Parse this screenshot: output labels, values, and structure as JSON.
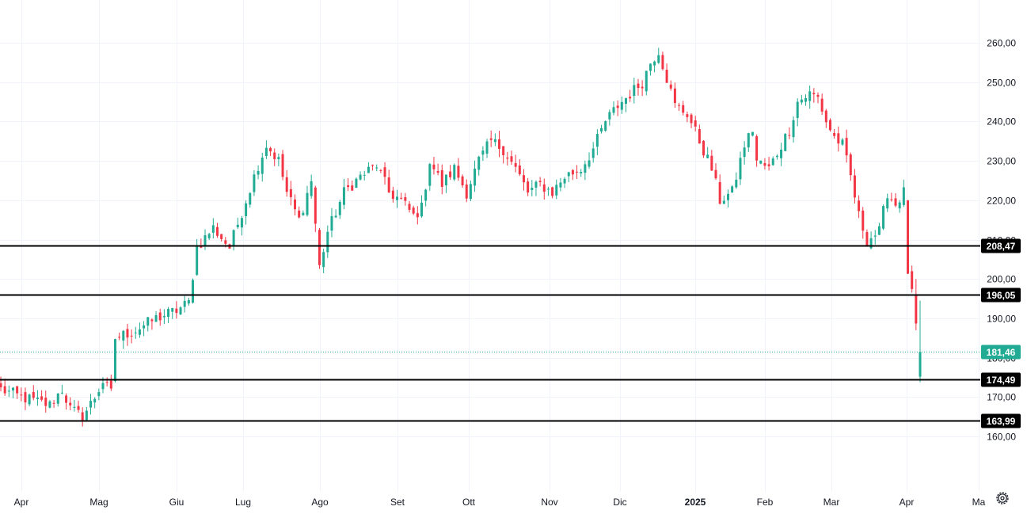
{
  "chart_data": {
    "type": "candlestick",
    "title": "",
    "xlabel": "",
    "ylabel": "",
    "ylim": [
      152,
      266
    ],
    "y_ticks": [
      {
        "value": 160,
        "label": "160,00"
      },
      {
        "value": 170,
        "label": "170,00"
      },
      {
        "value": 180,
        "label": "180,00"
      },
      {
        "value": 190,
        "label": "190,00"
      },
      {
        "value": 200,
        "label": "200,00"
      },
      {
        "value": 210,
        "label": "210,00"
      },
      {
        "value": 220,
        "label": "220,00"
      },
      {
        "value": 230,
        "label": "230,00"
      },
      {
        "value": 240,
        "label": "240,00"
      },
      {
        "value": 250,
        "label": "250,00"
      },
      {
        "value": 260,
        "label": "260,00"
      }
    ],
    "x_ticks": [
      {
        "label": "Apr",
        "bold": false
      },
      {
        "label": "Mag",
        "bold": false
      },
      {
        "label": "Giu",
        "bold": false
      },
      {
        "label": "Lug",
        "bold": false
      },
      {
        "label": "Ago",
        "bold": false
      },
      {
        "label": "Set",
        "bold": false
      },
      {
        "label": "Ott",
        "bold": false
      },
      {
        "label": "Nov",
        "bold": false
      },
      {
        "label": "Dic",
        "bold": false
      },
      {
        "label": "2025",
        "bold": true
      },
      {
        "label": "Feb",
        "bold": false
      },
      {
        "label": "Mar",
        "bold": false
      },
      {
        "label": "Apr",
        "bold": false
      },
      {
        "label": "Ma",
        "bold": false
      }
    ],
    "price_anchors": [
      [
        0,
        172
      ],
      [
        5,
        170
      ],
      [
        12,
        168
      ],
      [
        15,
        172
      ],
      [
        17,
        167
      ],
      [
        20,
        165
      ],
      [
        23,
        170
      ],
      [
        25,
        174
      ],
      [
        27,
        171
      ],
      [
        28,
        185
      ],
      [
        33,
        187
      ],
      [
        38,
        190
      ],
      [
        43,
        192
      ],
      [
        46,
        194
      ],
      [
        48,
        208
      ],
      [
        52,
        213
      ],
      [
        56,
        208
      ],
      [
        60,
        220
      ],
      [
        63,
        229
      ],
      [
        65,
        234
      ],
      [
        68,
        230
      ],
      [
        70,
        222
      ],
      [
        73,
        215
      ],
      [
        76,
        225
      ],
      [
        78,
        203
      ],
      [
        80,
        212
      ],
      [
        84,
        222
      ],
      [
        88,
        226
      ],
      [
        92,
        229
      ],
      [
        95,
        222
      ],
      [
        98,
        220
      ],
      [
        101,
        216
      ],
      [
        103,
        218
      ],
      [
        105,
        230
      ],
      [
        108,
        224
      ],
      [
        111,
        228
      ],
      [
        114,
        222
      ],
      [
        117,
        230
      ],
      [
        120,
        235
      ],
      [
        123,
        233
      ],
      [
        126,
        228
      ],
      [
        129,
        222
      ],
      [
        132,
        224
      ],
      [
        135,
        222
      ],
      [
        138,
        226
      ],
      [
        142,
        228
      ],
      [
        145,
        233
      ],
      [
        148,
        240
      ],
      [
        151,
        244
      ],
      [
        154,
        247
      ],
      [
        157,
        250
      ],
      [
        159,
        255
      ],
      [
        161,
        258
      ],
      [
        163,
        251
      ],
      [
        165,
        244
      ],
      [
        168,
        242
      ],
      [
        171,
        235
      ],
      [
        174,
        228
      ],
      [
        176,
        220
      ],
      [
        179,
        222
      ],
      [
        182,
        234
      ],
      [
        184,
        238
      ],
      [
        185,
        230
      ],
      [
        188,
        228
      ],
      [
        191,
        234
      ],
      [
        193,
        238
      ],
      [
        195,
        245
      ],
      [
        198,
        247
      ],
      [
        200,
        246
      ],
      [
        202,
        240
      ],
      [
        204,
        236
      ],
      [
        206,
        234
      ],
      [
        208,
        226
      ],
      [
        210,
        216
      ],
      [
        212,
        210
      ],
      [
        215,
        212
      ],
      [
        217,
        222
      ],
      [
        219,
        219
      ],
      [
        221,
        222
      ],
      [
        222,
        202
      ],
      [
        223,
        196
      ],
      [
        224,
        188
      ],
      [
        225,
        181.46
      ]
    ],
    "last_price": {
      "value": 181.46,
      "label": "181,46",
      "color": "#22ab94"
    },
    "horizontal_levels": [
      {
        "value": 208.47,
        "label": "208,47"
      },
      {
        "value": 196.05,
        "label": "196,05"
      },
      {
        "value": 174.49,
        "label": "174,49"
      },
      {
        "value": 163.99,
        "label": "163,99"
      }
    ],
    "colors": {
      "up": "#22ab94",
      "down": "#f23645",
      "grid": "#f0f3fa",
      "axis_text": "#131722",
      "level_line": "#000000",
      "level_badge_bg": "#000000",
      "level_badge_text": "#ffffff",
      "background": "#ffffff"
    },
    "grid": true
  },
  "controls": {
    "settings_icon": "gear-icon"
  }
}
